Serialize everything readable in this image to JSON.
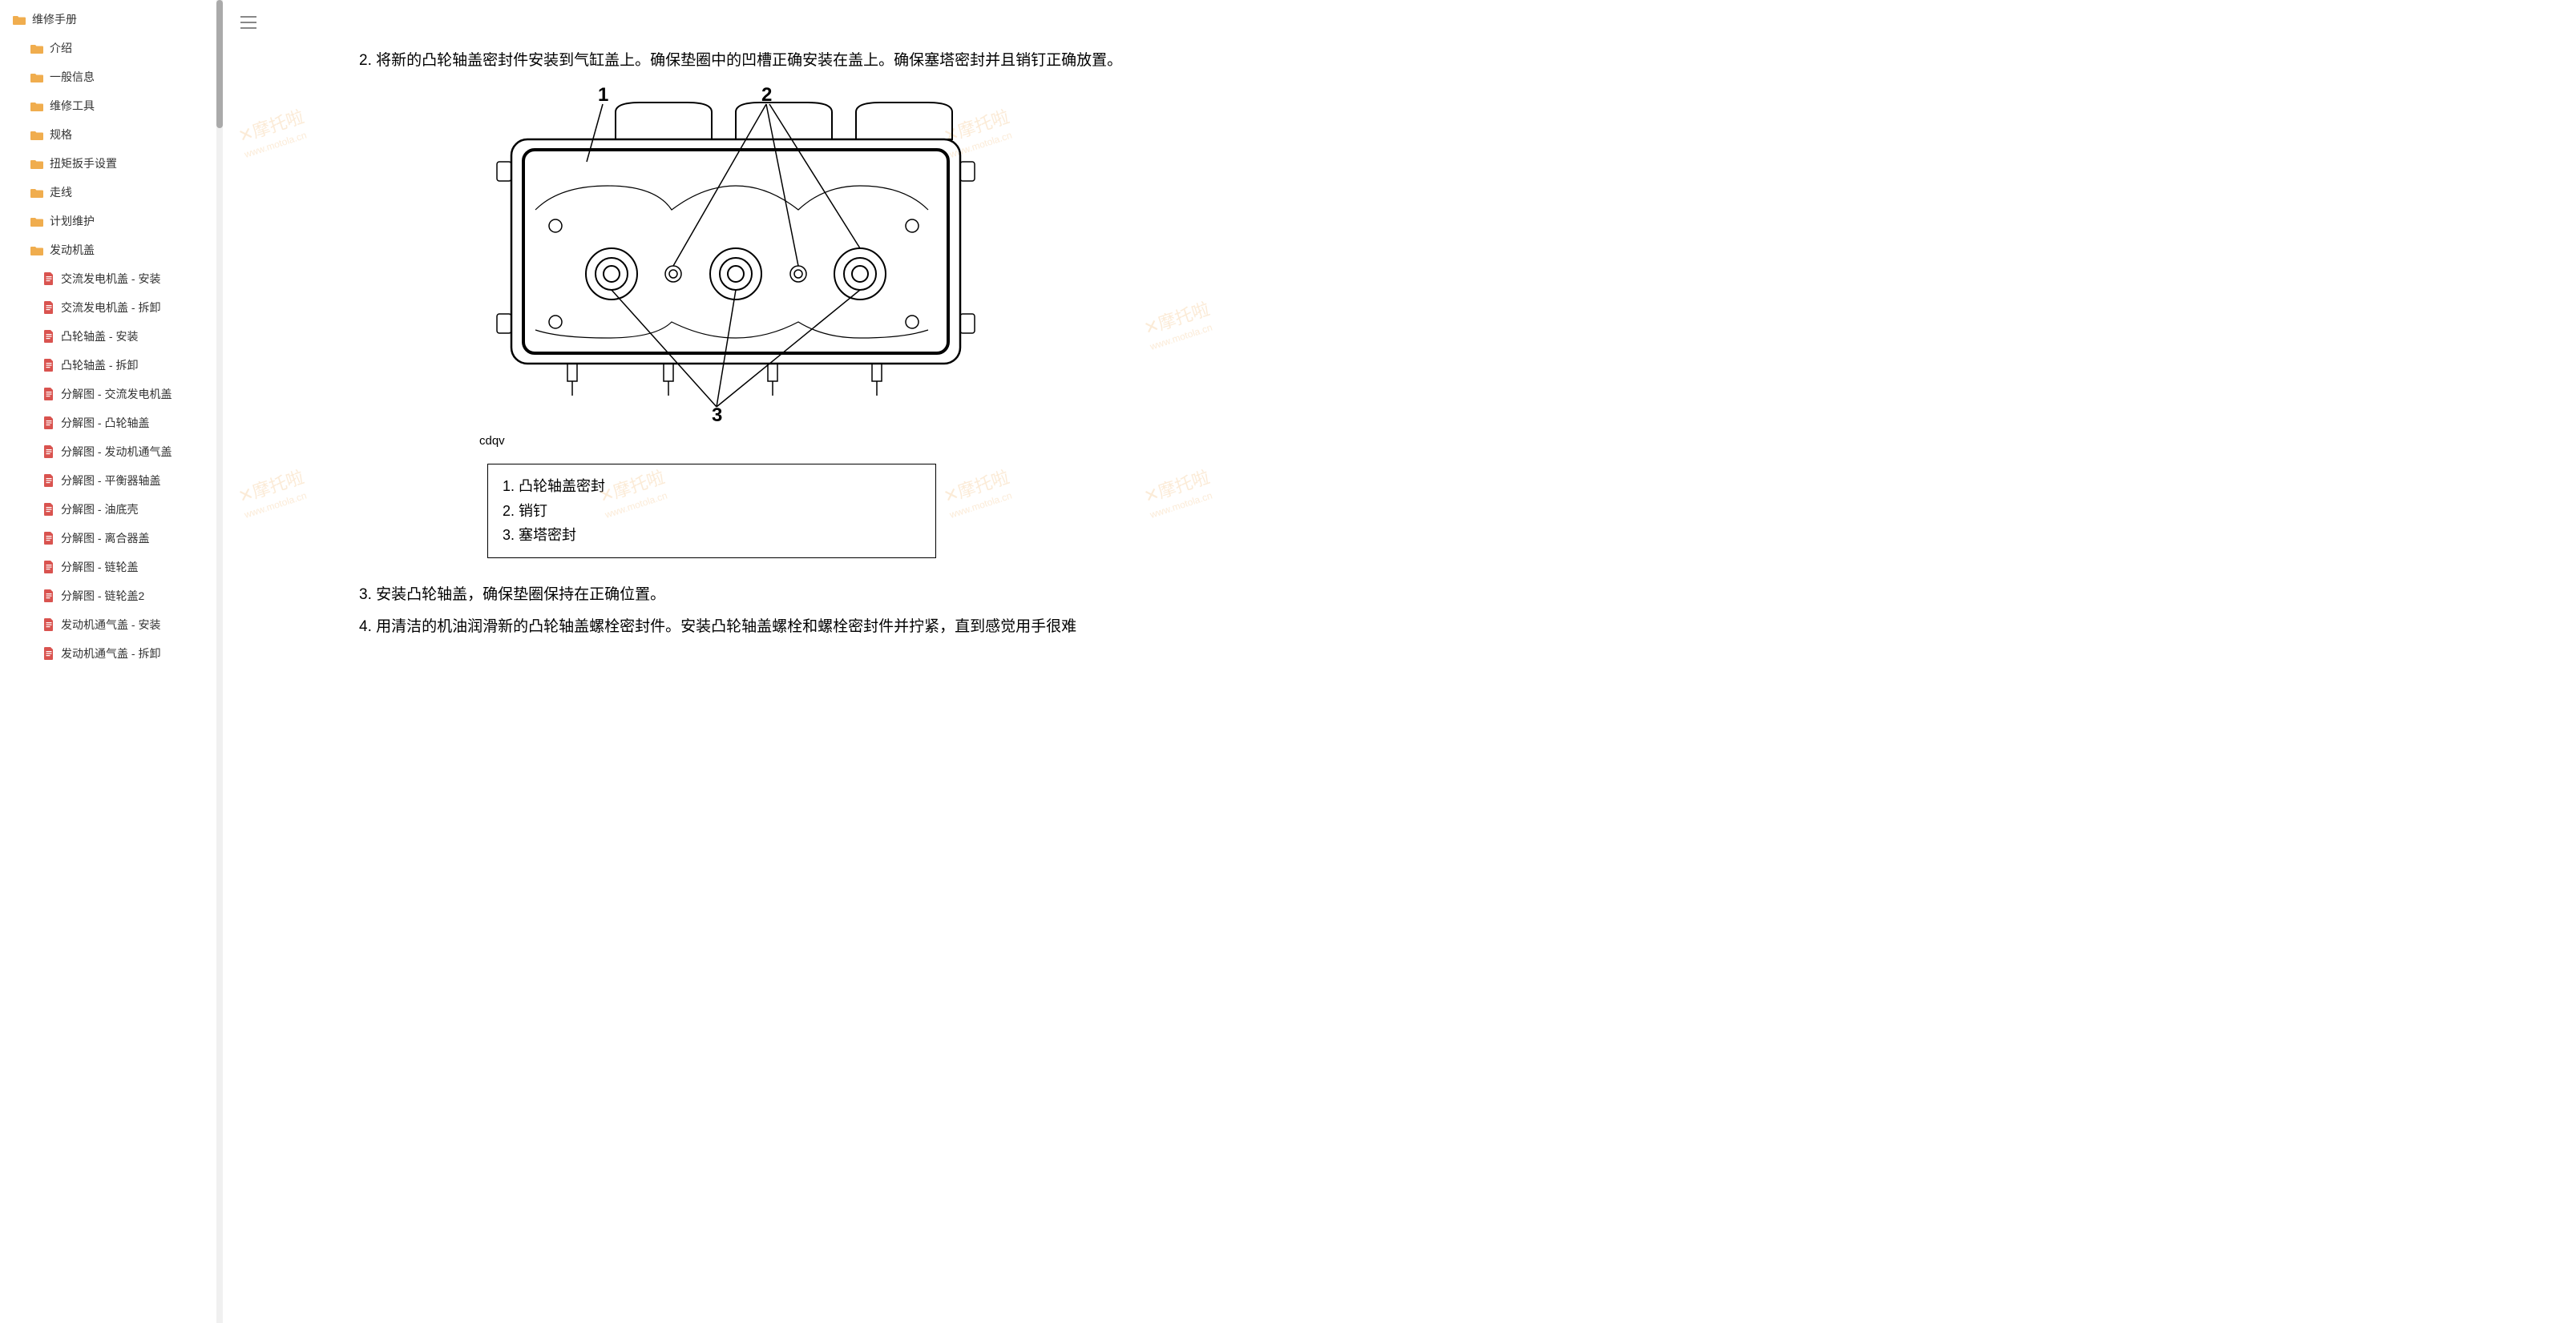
{
  "sidebar": {
    "root": {
      "label": "维修手册",
      "type": "folder",
      "level": 0
    },
    "items": [
      {
        "label": "介绍",
        "type": "folder",
        "level": 1
      },
      {
        "label": "一般信息",
        "type": "folder",
        "level": 1
      },
      {
        "label": "维修工具",
        "type": "folder",
        "level": 1
      },
      {
        "label": "规格",
        "type": "folder",
        "level": 1
      },
      {
        "label": "扭矩扳手设置",
        "type": "folder",
        "level": 1
      },
      {
        "label": "走线",
        "type": "folder",
        "level": 1
      },
      {
        "label": "计划维护",
        "type": "folder",
        "level": 1
      },
      {
        "label": "发动机盖",
        "type": "folder",
        "level": 1
      },
      {
        "label": "交流发电机盖 - 安装",
        "type": "doc",
        "level": 2
      },
      {
        "label": "交流发电机盖 - 拆卸",
        "type": "doc",
        "level": 2
      },
      {
        "label": "凸轮轴盖 - 安装",
        "type": "doc",
        "level": 2
      },
      {
        "label": "凸轮轴盖 - 拆卸",
        "type": "doc",
        "level": 2
      },
      {
        "label": "分解图 - 交流发电机盖",
        "type": "doc",
        "level": 2
      },
      {
        "label": "分解图 - 凸轮轴盖",
        "type": "doc",
        "level": 2
      },
      {
        "label": "分解图 - 发动机通气盖",
        "type": "doc",
        "level": 2
      },
      {
        "label": "分解图 - 平衡器轴盖",
        "type": "doc",
        "level": 2
      },
      {
        "label": "分解图 - 油底壳",
        "type": "doc",
        "level": 2
      },
      {
        "label": "分解图 - 离合器盖",
        "type": "doc",
        "level": 2
      },
      {
        "label": "分解图 - 链轮盖",
        "type": "doc",
        "level": 2
      },
      {
        "label": "分解图 - 链轮盖2",
        "type": "doc",
        "level": 2
      },
      {
        "label": "发动机通气盖 - 安装",
        "type": "doc",
        "level": 2
      },
      {
        "label": "发动机通气盖 - 拆卸",
        "type": "doc",
        "level": 2
      }
    ]
  },
  "content": {
    "step2_prefix": "2. ",
    "step2_text": "将新的凸轮轴盖密封件安装到气缸盖上。确保垫圈中的凹槽正确安装在盖上。确保塞塔密封并且销钉正确放置。",
    "diagram_code": "cdqv",
    "diagram_callouts": {
      "n1": "1",
      "n2": "2",
      "n3": "3"
    },
    "legend": {
      "item1": "1. 凸轮轴盖密封",
      "item2": "2. 销钉",
      "item3": "3. 塞塔密封"
    },
    "step3_prefix": "3. ",
    "step3_text": "安装凸轮轴盖，确保垫圈保持在正确位置。",
    "step4_prefix": "4. ",
    "step4_text": "用清洁的机油润滑新的凸轮轴盖螺栓密封件。安装凸轮轴盖螺栓和螺栓密封件并拧紧，直到感觉用手很难"
  },
  "watermark": {
    "main": "✕摩托啦",
    "sub": "www.motola.cn"
  },
  "colors": {
    "folder_icon": "#f0ad4e",
    "doc_icon": "#d9534f",
    "text": "#333333",
    "watermark": "#f5c78f",
    "scrollbar": "#aaaaaa"
  }
}
